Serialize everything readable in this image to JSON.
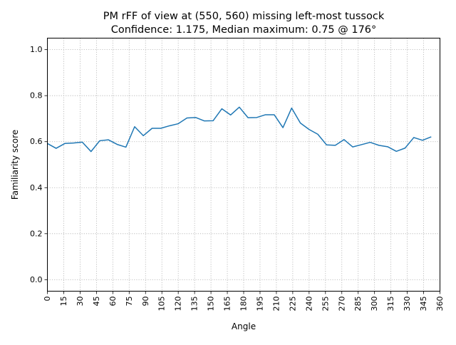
{
  "chart_data": {
    "type": "line",
    "title": "PM rFF of view at (550, 560) missing left-most tussock",
    "subtitle": "Confidence: 1.175, Median maximum: 0.75 @ 176°",
    "xlabel": "Angle",
    "ylabel": "Familiarity score",
    "xlim": [
      0,
      360
    ],
    "ylim": [
      -0.05,
      1.05
    ],
    "xticks": [
      0,
      15,
      30,
      45,
      60,
      75,
      90,
      105,
      120,
      135,
      150,
      165,
      180,
      195,
      210,
      225,
      240,
      255,
      270,
      285,
      300,
      315,
      330,
      345,
      360
    ],
    "yticks": [
      "0.0",
      "0.2",
      "0.4",
      "0.6",
      "0.8",
      "1.0"
    ],
    "grid": true,
    "series": [
      {
        "color": "#1f77b4",
        "x": [
          0,
          8,
          16,
          24,
          32,
          40,
          48,
          56,
          64,
          72,
          80,
          88,
          96,
          104,
          112,
          120,
          128,
          136,
          144,
          152,
          160,
          168,
          176,
          184,
          192,
          200,
          208,
          216,
          224,
          232,
          240,
          248,
          256,
          264,
          272,
          280,
          288,
          296,
          304,
          312,
          320,
          328,
          336,
          344,
          352
        ],
        "values": [
          0.592,
          0.571,
          0.592,
          0.594,
          0.598,
          0.557,
          0.604,
          0.608,
          0.588,
          0.576,
          0.665,
          0.626,
          0.658,
          0.658,
          0.669,
          0.678,
          0.703,
          0.705,
          0.69,
          0.691,
          0.743,
          0.716,
          0.75,
          0.704,
          0.705,
          0.717,
          0.717,
          0.661,
          0.746,
          0.681,
          0.653,
          0.632,
          0.586,
          0.584,
          0.609,
          0.577,
          0.587,
          0.597,
          0.584,
          0.578,
          0.558,
          0.572,
          0.618,
          0.606,
          0.621
        ]
      }
    ]
  }
}
